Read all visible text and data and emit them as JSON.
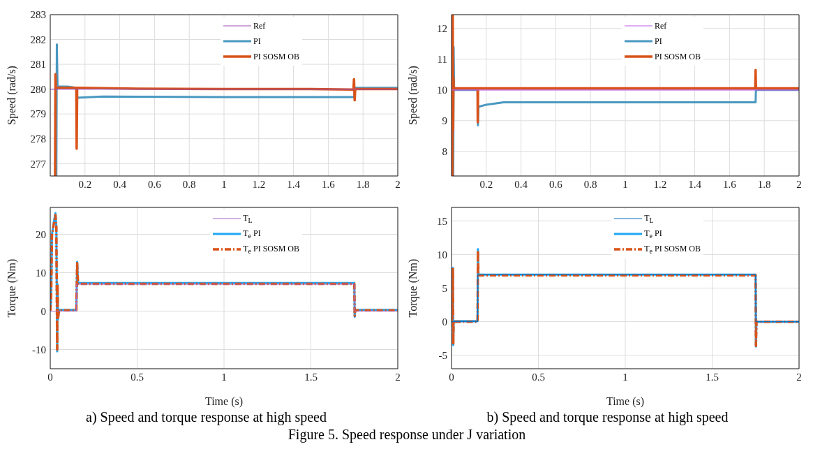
{
  "chart_data": [
    {
      "type": "line",
      "ylabel": "Speed (rad/s)",
      "xlim": [
        0,
        2
      ],
      "xticks": [
        0.2,
        0.4,
        0.6,
        0.8,
        1,
        1.2,
        1.4,
        1.6,
        1.8,
        2
      ],
      "ylim": [
        276.5,
        283
      ],
      "yticks": [
        277,
        278,
        279,
        280,
        281,
        282,
        283
      ],
      "grid": true,
      "legend": "top right",
      "series": [
        {
          "name": "Ref",
          "color": "#9b4fb0",
          "x": [
            0,
            2
          ],
          "values": [
            280,
            280
          ]
        },
        {
          "name": "PI",
          "color": "#4a98c0",
          "x": [
            0.035,
            0.038,
            0.042,
            0.1,
            0.15,
            0.152,
            0.3,
            1.0,
            1.75,
            1.752,
            2
          ],
          "values": [
            276.5,
            281.8,
            280.1,
            280.1,
            280.05,
            279.65,
            279.7,
            279.68,
            279.68,
            280.05,
            280.05
          ]
        },
        {
          "name": "PI SOSM OB",
          "color": "#d95319",
          "x": [
            0.028,
            0.03,
            0.032,
            0.035,
            0.15,
            0.152,
            0.155,
            0.158,
            0.5,
            1.0,
            1.5,
            1.745,
            1.748,
            1.752,
            1.755,
            2
          ],
          "values": [
            276.5,
            280.6,
            280.0,
            280.05,
            280.05,
            277.6,
            280.05,
            280.05,
            280.02,
            280.0,
            280.0,
            279.98,
            280.4,
            279.55,
            280.0,
            280.0
          ]
        }
      ]
    },
    {
      "type": "line",
      "ylabel": "Speed (rad/s)",
      "xlim": [
        0,
        2
      ],
      "xticks": [
        0.2,
        0.4,
        0.6,
        0.8,
        1,
        1.2,
        1.4,
        1.6,
        1.8,
        2
      ],
      "ylim": [
        7.2,
        12.45
      ],
      "yticks": [
        8,
        9,
        10,
        11,
        12
      ],
      "grid": true,
      "legend": "top right",
      "series": [
        {
          "name": "Ref",
          "color": "#c05ce8",
          "x": [
            0,
            2
          ],
          "values": [
            10,
            10
          ]
        },
        {
          "name": "PI",
          "color": "#4a98c0",
          "x": [
            0.01,
            0.012,
            0.015,
            0.15,
            0.152,
            0.155,
            0.2,
            0.3,
            1.0,
            1.75,
            1.752,
            2
          ],
          "values": [
            7.2,
            11.4,
            10.0,
            10.0,
            8.85,
            9.45,
            9.52,
            9.6,
            9.6,
            9.6,
            10.0,
            10.0
          ]
        },
        {
          "name": "PI SOSM OB",
          "color": "#d95319",
          "x": [
            0.005,
            0.007,
            0.009,
            0.011,
            0.013,
            0.015,
            0.15,
            0.151,
            0.153,
            0.155,
            1.748,
            1.75,
            1.752,
            1.755,
            2
          ],
          "values": [
            7.2,
            12.45,
            8.7,
            10.4,
            10.05,
            10.05,
            10.05,
            8.95,
            10.05,
            10.05,
            10.05,
            10.65,
            10.05,
            10.05,
            10.05
          ]
        }
      ]
    },
    {
      "type": "line",
      "xlabel": "Time (s)",
      "ylabel": "Torque (Nm)",
      "xlim": [
        0,
        2
      ],
      "xticks": [
        0,
        0.5,
        1,
        1.5,
        2
      ],
      "ylim": [
        -15,
        27
      ],
      "yticks": [
        -10,
        0,
        10,
        20
      ],
      "grid": true,
      "legend": "top right",
      "annotations": [
        "a) Speed and torque response at high speed"
      ],
      "series": [
        {
          "name": "T$_{L}$",
          "color": "#a668c0",
          "x": [
            0,
            0.15,
            0.152,
            1.75,
            1.752,
            2
          ],
          "values": [
            0,
            0,
            7,
            7,
            0,
            0
          ]
        },
        {
          "name": "T$_{e}$ PI",
          "color": "#1fa6f5",
          "x": [
            0,
            0.005,
            0.01,
            0.02,
            0.03,
            0.035,
            0.04,
            0.042,
            0.045,
            0.05,
            0.15,
            0.155,
            0.16,
            0.3,
            1.75,
            1.752,
            1.755,
            2
          ],
          "values": [
            0,
            3,
            20,
            23,
            25.5,
            22,
            -10.5,
            7,
            -2,
            0.3,
            0.3,
            12.8,
            7.3,
            7.3,
            7.3,
            -1.5,
            0.3,
            0.3
          ]
        },
        {
          "name": "T$_{e}$ PI SOSM OB",
          "color": "#d95319",
          "line_style": "dashed",
          "x": [
            0,
            0.005,
            0.01,
            0.02,
            0.03,
            0.035,
            0.04,
            0.042,
            0.045,
            0.05,
            0.15,
            0.155,
            0.16,
            0.3,
            1.75,
            1.752,
            1.755,
            2
          ],
          "values": [
            0,
            3,
            20,
            22.5,
            25,
            22,
            -10,
            7,
            -2,
            0.2,
            0.2,
            12.5,
            7.1,
            7.1,
            7.1,
            -1.2,
            0.2,
            0.2
          ]
        }
      ]
    },
    {
      "type": "line",
      "xlabel": "Time (s)",
      "ylabel": "Torque (Nm)",
      "xlim": [
        0,
        2
      ],
      "xticks": [
        0,
        0.5,
        1,
        1.5,
        2
      ],
      "ylim": [
        -7,
        17
      ],
      "yticks": [
        -5,
        0,
        5,
        10,
        15
      ],
      "grid": true,
      "legend": "top right",
      "annotations": [
        "b) Speed and torque response at high speed",
        "Figure 5. Speed response under J variation"
      ],
      "series": [
        {
          "name": "T$_{L}$",
          "color": "#0d6fbf",
          "x": [
            0,
            0.15,
            0.152,
            1.75,
            1.752,
            2
          ],
          "values": [
            0,
            0,
            7,
            7,
            0,
            0
          ]
        },
        {
          "name": "T$_{e}$ PI",
          "color": "#1fa6f5",
          "x": [
            0,
            0.005,
            0.008,
            0.01,
            0.012,
            0.015,
            0.15,
            0.152,
            0.155,
            0.3,
            1.75,
            1.752,
            1.755,
            2
          ],
          "values": [
            0,
            1.5,
            8,
            -3.5,
            0.1,
            0.1,
            0.1,
            10.8,
            7,
            7,
            7,
            -3.7,
            0,
            0
          ]
        },
        {
          "name": "T$_{e}$ PI SOSM OB",
          "color": "#d95319",
          "line_style": "dashed",
          "x": [
            0,
            0.005,
            0.008,
            0.01,
            0.012,
            0.015,
            0.15,
            0.152,
            0.155,
            0.3,
            1.75,
            1.752,
            1.755,
            2
          ],
          "values": [
            0,
            1.2,
            8,
            -3.4,
            0,
            0,
            0,
            10.6,
            6.9,
            6.9,
            6.9,
            -3.6,
            0,
            0
          ]
        }
      ]
    }
  ]
}
